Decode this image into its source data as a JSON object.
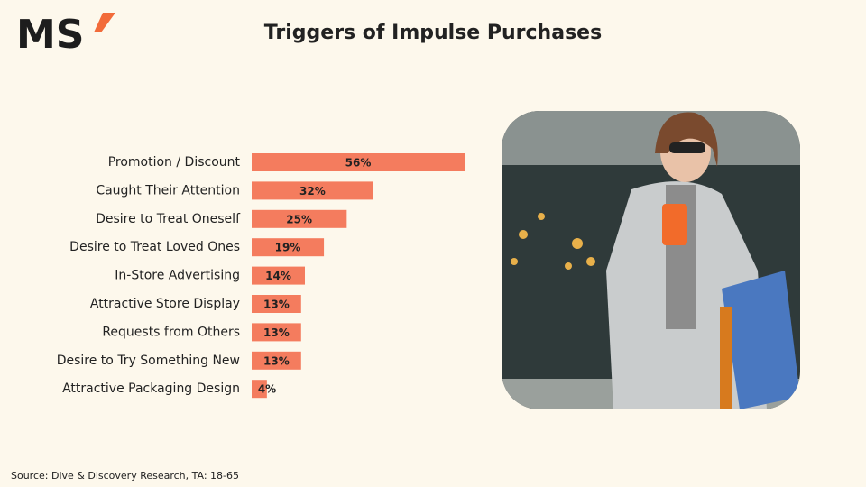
{
  "logo": "MS",
  "chart_data": {
    "type": "bar",
    "orientation": "horizontal",
    "title": "Triggers of Impulse Purchases",
    "categories": [
      "Promotion / Discount",
      "Caught Their Attention",
      "Desire to Treat Oneself",
      "Desire to Treat Loved Ones",
      "In-Store Advertising",
      "Attractive Store Display",
      "Requests from Others",
      "Desire to Try Something New",
      "Attractive Packaging Design"
    ],
    "values": [
      56,
      32,
      25,
      19,
      14,
      13,
      13,
      13,
      4
    ],
    "value_labels": [
      "56%",
      "32%",
      "25%",
      "19%",
      "14%",
      "13%",
      "13%",
      "13%",
      "4%"
    ],
    "color": "#f47c5e"
  },
  "source": "Source: Dive & Discovery Research, TA: 18-65"
}
